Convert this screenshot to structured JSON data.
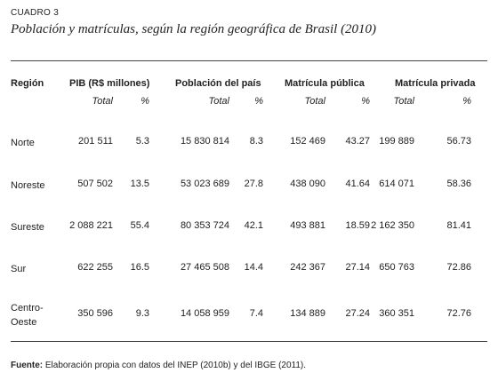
{
  "label": "CUADRO 3",
  "title": "Población y matrículas, según la región geográfica de Brasil (2010)",
  "table": {
    "header": [
      "Región",
      "PIB (R$ millones)",
      "Población del país",
      "Matrícula pública",
      "Matrícula privada"
    ],
    "subheader": [
      "Total",
      "%",
      "Total",
      "%",
      "Total",
      "%",
      "Total",
      "%"
    ],
    "rows": [
      [
        "Norte",
        "201 511",
        "5.3",
        "15 830 814",
        "8.3",
        "152 469",
        "43.27",
        "199 889",
        "56.73"
      ],
      [
        "Noreste",
        "507 502",
        "13.5",
        "53 023 689",
        "27.8",
        "438 090",
        "41.64",
        "614 071",
        "58.36"
      ],
      [
        "Sureste",
        "2 088 221",
        "55.4",
        "80 353 724",
        "42.1",
        "493 881",
        "18.59",
        "2 162 350",
        "81.41"
      ],
      [
        "Sur",
        "622 255",
        "16.5",
        "27 465 508",
        "14.4",
        "242 367",
        "27.14",
        "650 763",
        "72.86"
      ],
      [
        "Centro-Oeste",
        "350 596",
        "9.3",
        "14 058 959",
        "7.4",
        "134 889",
        "27.24",
        "360 351",
        "72.76"
      ]
    ]
  },
  "source": {
    "label": "Fuente:",
    "text": "Elaboración propia con datos del INEP (2010b) y del IBGE (2011)."
  }
}
